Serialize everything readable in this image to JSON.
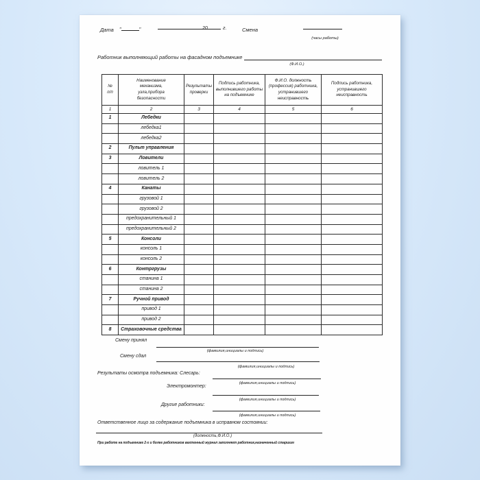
{
  "document": {
    "header": {
      "date_label": "Дата",
      "open_quote": "\"",
      "close_quote": "\"",
      "year_prefix": "20",
      "year_suffix": "г.",
      "shift_label": "Смена",
      "hours_note": "(часы работы)",
      "worker_label": "Работник выполняющий работы на фасадном подъемнике",
      "fio_note": "(Ф.И.О.)"
    },
    "table": {
      "headers": [
        "№\nп/п",
        "Наименование\nмеханизма,\nузла,прибора\nбезопасности",
        "Результаты\nпроверки",
        "Подпись работника,\nвыполнившего работы\nна подъемнике",
        "Ф.И.О. должность\n(профессия) работника,\nустранившего\nнеисправность",
        "Подпись работника,\nустранившего\nнеисправность"
      ],
      "col_numbers": [
        "1",
        "2",
        "3",
        "4",
        "5",
        "6"
      ],
      "rows": [
        {
          "num": "1",
          "name": "Лебедки",
          "group": true
        },
        {
          "num": "",
          "name": "лебедка1",
          "group": false
        },
        {
          "num": "",
          "name": "лебедка2",
          "group": false
        },
        {
          "num": "2",
          "name": "Пульт управления",
          "group": true
        },
        {
          "num": "3",
          "name": "Ловители",
          "group": true
        },
        {
          "num": "",
          "name": "ловитель 1",
          "group": false
        },
        {
          "num": "",
          "name": "ловитель 2",
          "group": false
        },
        {
          "num": "4",
          "name": "Канаты",
          "group": true
        },
        {
          "num": "",
          "name": "грузовой 1",
          "group": false
        },
        {
          "num": "",
          "name": "грузовой 2",
          "group": false
        },
        {
          "num": "",
          "name": "предохранительный 1",
          "group": false
        },
        {
          "num": "",
          "name": "предохранительный 2",
          "group": false
        },
        {
          "num": "5",
          "name": "Консоли",
          "group": true
        },
        {
          "num": "",
          "name": "консоль 1",
          "group": false
        },
        {
          "num": "",
          "name": "консоль 2",
          "group": false
        },
        {
          "num": "6",
          "name": "Контргрузы",
          "group": true
        },
        {
          "num": "",
          "name": "станина 1",
          "group": false
        },
        {
          "num": "",
          "name": "станина 2",
          "group": false
        },
        {
          "num": "7",
          "name": "Ручной привод",
          "group": true
        },
        {
          "num": "",
          "name": "привод 1",
          "group": false
        },
        {
          "num": "",
          "name": "привод 2",
          "group": false
        },
        {
          "num": "8",
          "name": "Страховочные средства",
          "group": true
        }
      ]
    },
    "signatures": {
      "lines": [
        {
          "label": "Смену принял",
          "note": "(фамилия,инициалы и подпись)"
        },
        {
          "label": "Смену сдал",
          "note": "(фамилия,инициалы и подпись)"
        },
        {
          "label": "Результаты осмотра подъемника: Слесарь:",
          "note": "(фамилия,инициалы и подпись)"
        },
        {
          "label": "Электромонтер:",
          "note": "(фамилия,инициалы и подпись)"
        },
        {
          "label": "Другие работники:",
          "note": "(фамилия,инициалы и подпись)"
        }
      ],
      "responsible_label": "Ответственное лицо за содержание подъемника в исправном состоянии:",
      "responsible_note": "(должность,Ф.И.О.)",
      "footnote": "При работе на подъемнике 2-х и более работников вахтенный журнал заполняет работник,назначенный старшим"
    },
    "colors": {
      "page_background": "#fefefe",
      "desktop_background": "#d9eafb",
      "ink": "#1b1b1b"
    }
  }
}
